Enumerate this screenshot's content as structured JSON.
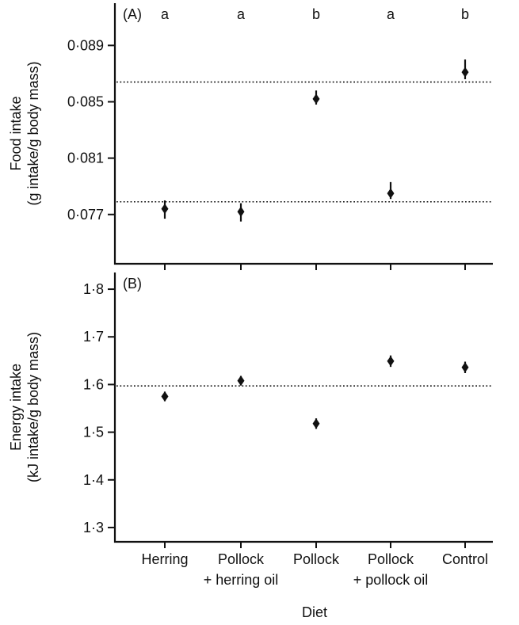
{
  "chart_data": [
    {
      "type": "scatter",
      "panel_label": "(A)",
      "ylabel_line1": "Food intake",
      "ylabel_line2": "(g intake/g body mass)",
      "ylim": [
        0.0735,
        0.092
      ],
      "yticks": [
        0.077,
        0.081,
        0.085,
        0.089
      ],
      "ytick_labels": [
        "0·077",
        "0·081",
        "0·085",
        "0·089"
      ],
      "categories": [
        "Herring",
        "Pollock + herring oil",
        "Pollock",
        "Pollock + pollock oil",
        "Control"
      ],
      "values": [
        0.0774,
        0.0772,
        0.0852,
        0.0785,
        0.0871
      ],
      "err_up": [
        0.0006,
        0.0006,
        0.0006,
        0.0008,
        0.0009
      ],
      "err_down": [
        0.0007,
        0.0007,
        0.0004,
        0.0004,
        0.0005
      ],
      "significance": [
        "a",
        "a",
        "b",
        "a",
        "b"
      ],
      "reference_lines": [
        0.0864,
        0.0779
      ]
    },
    {
      "type": "scatter",
      "panel_label": "(B)",
      "ylabel_line1": "Energy intake",
      "ylabel_line2": "(kJ intake/g body mass)",
      "ylim": [
        1.27,
        1.835
      ],
      "yticks": [
        1.3,
        1.4,
        1.5,
        1.6,
        1.7,
        1.8
      ],
      "ytick_labels": [
        "1·3",
        "1·4",
        "1·5",
        "1·6",
        "1·7",
        "1·8"
      ],
      "categories": [
        "Herring",
        "Pollock + herring oil",
        "Pollock",
        "Pollock + pollock oil",
        "Control"
      ],
      "values": [
        1.575,
        1.608,
        1.518,
        1.649,
        1.636
      ],
      "err_up": [
        0.01,
        0.01,
        0.011,
        0.012,
        0.012
      ],
      "err_down": [
        0.01,
        0.01,
        0.011,
        0.012,
        0.012
      ],
      "reference_lines": [
        1.597
      ]
    }
  ],
  "x_axis": {
    "title": "Diet",
    "category_labels": [
      [
        "Herring"
      ],
      [
        "Pollock",
        "+ herring oil"
      ],
      [
        "Pollock"
      ],
      [
        "Pollock",
        "+ pollock oil"
      ],
      [
        "Control"
      ]
    ]
  }
}
